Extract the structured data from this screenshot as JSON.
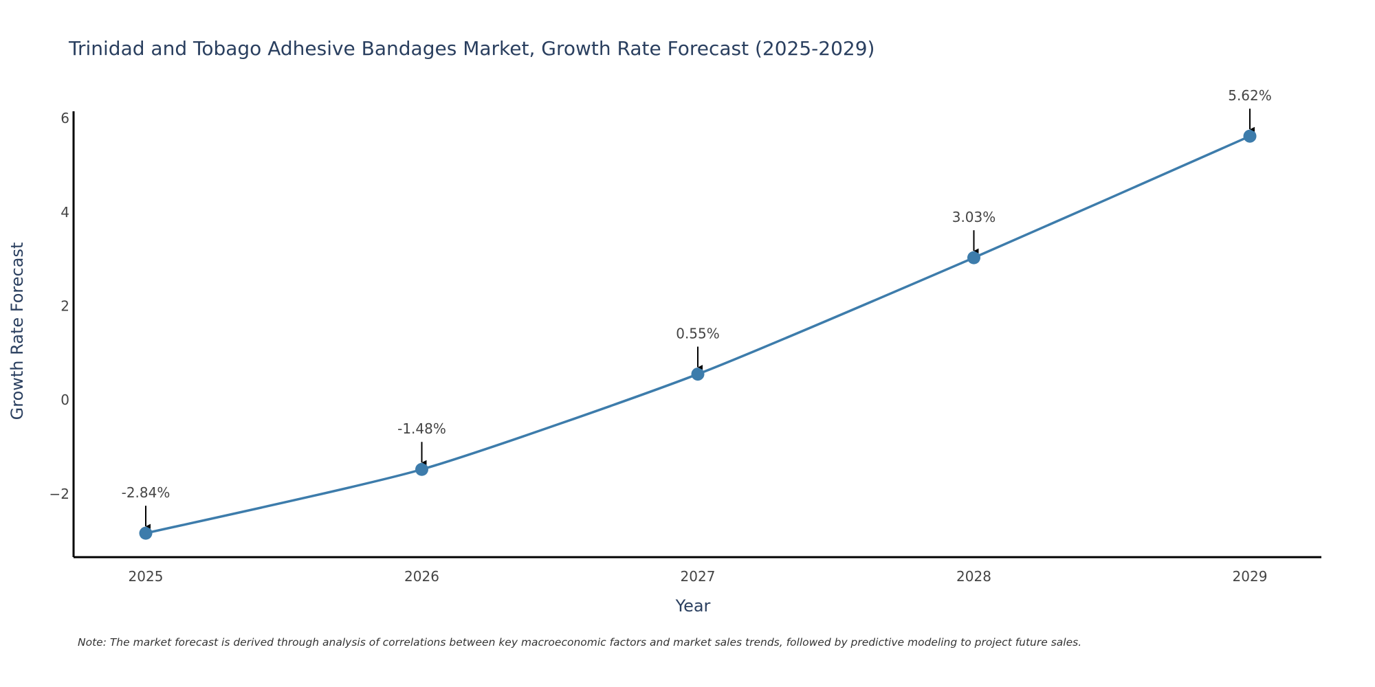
{
  "chart_data": {
    "type": "line",
    "title": "Trinidad and Tobago Adhesive Bandages Market, Growth Rate Forecast (2025-2029)",
    "xlabel": "Year",
    "ylabel": "Growth Rate Forecast",
    "categories": [
      "2025",
      "2026",
      "2027",
      "2028",
      "2029"
    ],
    "values": [
      -2.84,
      -1.48,
      0.55,
      3.03,
      5.62
    ],
    "data_labels": [
      "-2.84%",
      "-1.48%",
      "0.55%",
      "3.03%",
      "5.62%"
    ],
    "y_ticks": [
      -2,
      0,
      2,
      4,
      6
    ],
    "y_tick_labels": [
      "−2",
      "0",
      "2",
      "4",
      "6"
    ],
    "ylim": [
      -3.35,
      6.15
    ],
    "grid": false,
    "line_color": "#3d7cab",
    "marker_color": "#3d7cab",
    "arrow_color": "#000000"
  },
  "note": "Note: The market forecast is derived through analysis of correlations between key macroeconomic factors and market sales trends, followed by predictive modeling to project future sales."
}
